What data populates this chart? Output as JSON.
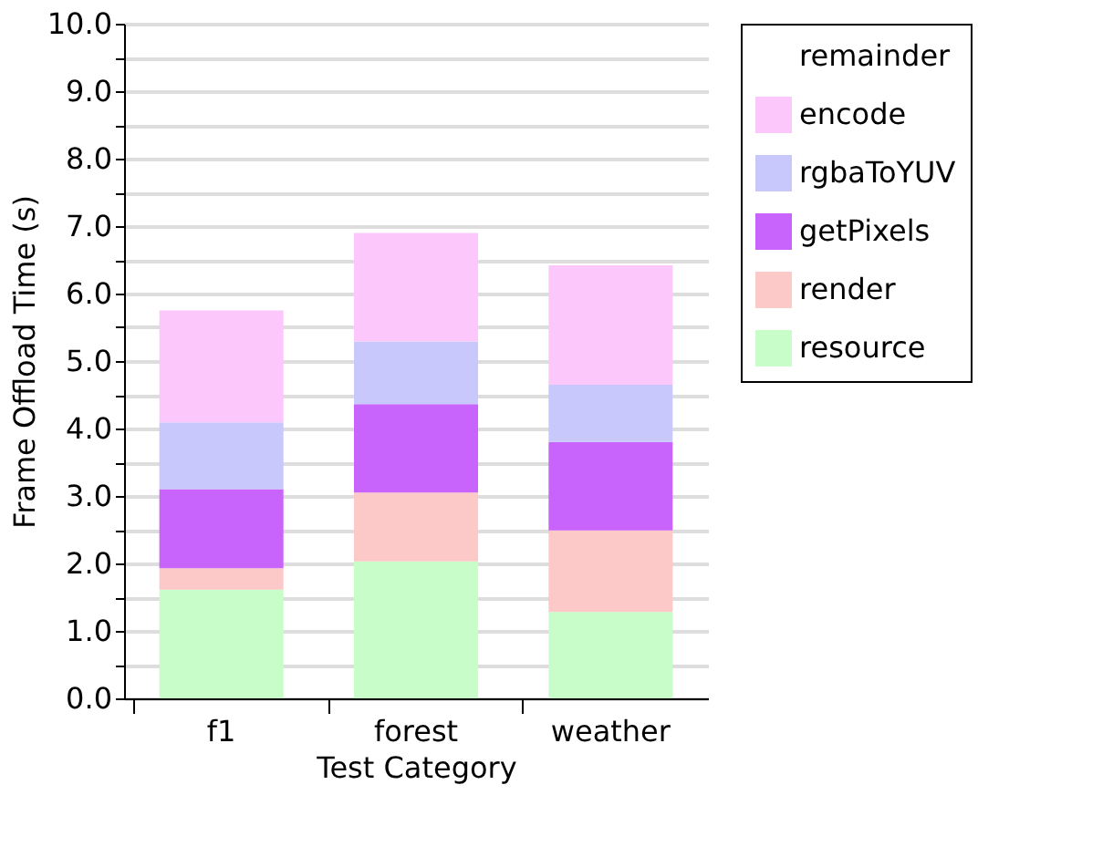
{
  "chart_data": {
    "type": "bar",
    "stacked": true,
    "xlabel": "Test Category",
    "ylabel": "Frame Offload Time (s)",
    "categories": [
      "f1",
      "forest",
      "weather"
    ],
    "series": [
      {
        "name": "resource",
        "color": "#c8fcc8",
        "values": [
          1.61,
          2.03,
          1.28
        ]
      },
      {
        "name": "render",
        "color": "#fcc8c8",
        "values": [
          0.32,
          1.02,
          1.21
        ]
      },
      {
        "name": "getPixels",
        "color": "#c864fc",
        "values": [
          1.17,
          1.31,
          1.31
        ]
      },
      {
        "name": "rgbaToYUV",
        "color": "#c8c8fc",
        "values": [
          0.99,
          0.93,
          0.85
        ]
      },
      {
        "name": "encode",
        "color": "#fcc8fc",
        "values": [
          1.66,
          1.61,
          1.77
        ]
      },
      {
        "name": "remainder",
        "values": [
          null,
          null,
          null
        ]
      }
    ],
    "ylim": [
      0,
      10
    ],
    "yticks": [
      {
        "value": 0,
        "label": "0.0"
      },
      {
        "value": 0.5,
        "label": null
      },
      {
        "value": 1,
        "label": "1.0"
      },
      {
        "value": 1.5,
        "label": null
      },
      {
        "value": 2,
        "label": "2.0"
      },
      {
        "value": 2.5,
        "label": null
      },
      {
        "value": 3,
        "label": "3.0"
      },
      {
        "value": 3.5,
        "label": null
      },
      {
        "value": 4,
        "label": "4.0"
      },
      {
        "value": 4.5,
        "label": null
      },
      {
        "value": 5,
        "label": "5.0"
      },
      {
        "value": 5.5,
        "label": null
      },
      {
        "value": 6,
        "label": "6.0"
      },
      {
        "value": 6.5,
        "label": null
      },
      {
        "value": 7,
        "label": "7.0"
      },
      {
        "value": 7.5,
        "label": null
      },
      {
        "value": 8,
        "label": "8.0"
      },
      {
        "value": 8.5,
        "label": null
      },
      {
        "value": 9,
        "label": "9.0"
      },
      {
        "value": 9.5,
        "label": null
      },
      {
        "value": 10,
        "label": "10.0"
      }
    ],
    "grid": "y",
    "legend": "top right"
  }
}
